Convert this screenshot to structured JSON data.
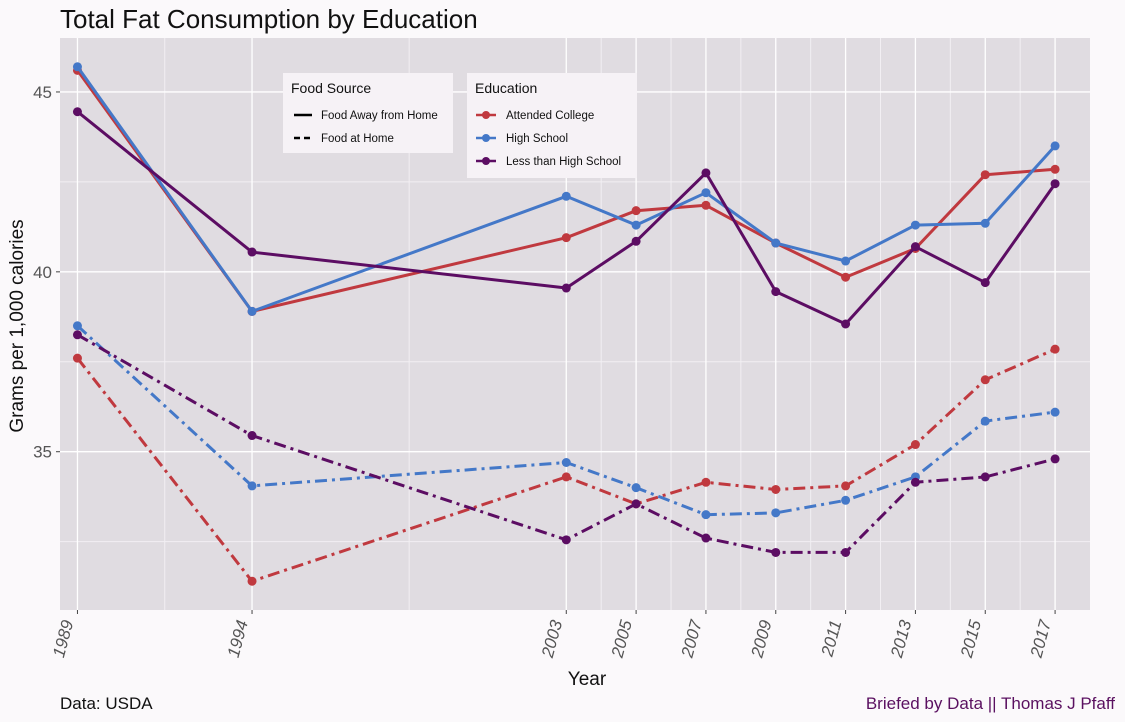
{
  "chart_data": {
    "type": "line",
    "title": "Total Fat Consumption by Education",
    "xlabel": "Year",
    "ylabel": "Grams per 1,000 calories",
    "x": [
      1989,
      1994,
      2003,
      2005,
      2007,
      2009,
      2011,
      2013,
      2015,
      2017
    ],
    "xlim": [
      1988.5,
      2018
    ],
    "ylim": [
      30.6,
      46.5
    ],
    "yticks": [
      35,
      40,
      45
    ],
    "grid": true,
    "background": "#e0dce1",
    "legends": {
      "food_source": {
        "title": "Food Source",
        "entries": [
          {
            "label": "Food Away from Home",
            "style": "solid"
          },
          {
            "label": "Food at Home",
            "style": "dashed"
          }
        ]
      },
      "education": {
        "title": "Education",
        "entries": [
          {
            "label": "Attended College",
            "color": "#c0393f"
          },
          {
            "label": "High School",
            "color": "#4478c8"
          },
          {
            "label": "Less than High School",
            "color": "#5c0d63"
          }
        ]
      }
    },
    "series": [
      {
        "education": "Attended College",
        "food_source": "Food Away from Home",
        "color": "#c0393f",
        "style": "solid",
        "values": [
          45.6,
          38.9,
          40.95,
          41.7,
          41.85,
          40.8,
          39.85,
          40.65,
          42.7,
          42.85
        ]
      },
      {
        "education": "High School",
        "food_source": "Food Away from Home",
        "color": "#4478c8",
        "style": "solid",
        "values": [
          45.7,
          38.9,
          42.1,
          41.3,
          42.2,
          40.8,
          40.3,
          41.3,
          41.35,
          43.5
        ]
      },
      {
        "education": "Less than High School",
        "food_source": "Food Away from Home",
        "color": "#5c0d63",
        "style": "solid",
        "values": [
          44.45,
          40.55,
          39.55,
          40.85,
          42.75,
          39.45,
          38.55,
          40.7,
          39.7,
          42.45
        ]
      },
      {
        "education": "Attended College",
        "food_source": "Food at Home",
        "color": "#c0393f",
        "style": "dashed",
        "values": [
          37.6,
          31.4,
          34.3,
          33.55,
          34.15,
          33.95,
          34.05,
          35.2,
          37.0,
          37.85
        ]
      },
      {
        "education": "High School",
        "food_source": "Food at Home",
        "color": "#4478c8",
        "style": "dashed",
        "values": [
          38.5,
          34.05,
          34.7,
          34.0,
          33.25,
          33.3,
          33.65,
          34.3,
          35.85,
          36.1
        ]
      },
      {
        "education": "Less than High School",
        "food_source": "Food at Home",
        "color": "#5c0d63",
        "style": "dashed",
        "values": [
          38.25,
          35.45,
          32.55,
          33.55,
          32.6,
          32.2,
          32.2,
          34.15,
          34.3,
          34.8
        ]
      }
    ]
  },
  "captions": {
    "left": "Data: USDA",
    "right": "Briefed by Data || Thomas J Pfaff"
  }
}
